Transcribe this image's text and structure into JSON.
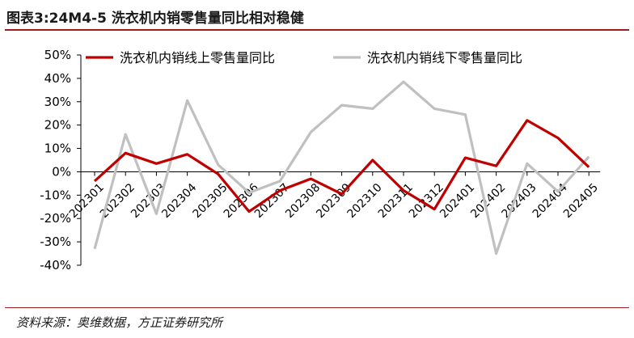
{
  "title": "图表3:24M4-5 洗衣机内销零售量同比相对稳健",
  "source": "资料来源：奥维数据，方正证券研究所",
  "chart_data": {
    "type": "line",
    "categories": [
      "202301",
      "202302",
      "202303",
      "202304",
      "202305",
      "202306",
      "202307",
      "202308",
      "202309",
      "202310",
      "202311",
      "202312",
      "202401",
      "202402",
      "202403",
      "202404",
      "202405"
    ],
    "yticks": [
      "50%",
      "40%",
      "30%",
      "20%",
      "10%",
      "0%",
      "-10%",
      "-20%",
      "-30%",
      "-40%"
    ],
    "ylim": [
      -40,
      50
    ],
    "legend_position": "top",
    "series": [
      {
        "name": "洗衣机内销线上零售量同比",
        "color": "#c00000",
        "values": [
          -4,
          8,
          3.5,
          7.5,
          -1,
          -17,
          -8,
          -3,
          -9.5,
          5,
          -8,
          -16,
          6,
          2.5,
          22,
          14.5,
          2
        ]
      },
      {
        "name": "洗衣机内销线下零售量同比",
        "color": "#c0c0c0",
        "values": [
          -33,
          16,
          -18,
          30.5,
          3,
          -9,
          -4,
          17,
          28.5,
          27,
          38.5,
          27,
          24.5,
          -35,
          3.5,
          -8.5,
          6.5
        ]
      }
    ]
  }
}
